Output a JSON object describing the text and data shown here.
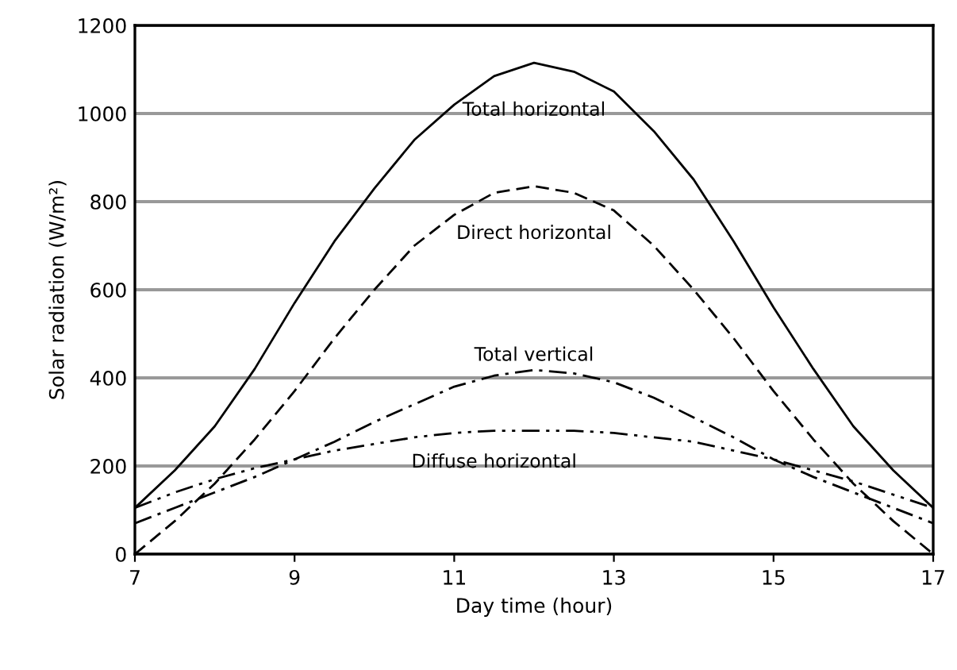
{
  "chart_data": {
    "type": "line",
    "xlabel": "Day time (hour)",
    "ylabel": "Solar radiation (W/m²)",
    "x": [
      7,
      7.5,
      8,
      8.5,
      9,
      9.5,
      10,
      10.5,
      11,
      11.5,
      12,
      12.5,
      13,
      13.5,
      14,
      14.5,
      15,
      15.5,
      16,
      16.5,
      17
    ],
    "series": [
      {
        "name": "Total horizontal",
        "color": "#000000",
        "line_style": "solid",
        "values": [
          105,
          190,
          290,
          420,
          570,
          710,
          830,
          940,
          1020,
          1085,
          1115,
          1095,
          1050,
          960,
          850,
          710,
          560,
          420,
          290,
          190,
          105
        ]
      },
      {
        "name": "Direct horizontal",
        "color": "#000000",
        "line_style": "dashed",
        "values": [
          0,
          75,
          160,
          260,
          370,
          490,
          600,
          700,
          770,
          820,
          835,
          820,
          780,
          700,
          600,
          490,
          370,
          260,
          160,
          75,
          0
        ]
      },
      {
        "name": "Total vertical",
        "color": "#000000",
        "line_style": "dashdot",
        "values": [
          70,
          105,
          140,
          175,
          215,
          255,
          300,
          340,
          380,
          405,
          418,
          410,
          390,
          355,
          310,
          265,
          215,
          175,
          140,
          105,
          70
        ]
      },
      {
        "name": "Diffuse horizontal",
        "color": "#000000",
        "line_style": "dashdotdot",
        "values": [
          105,
          140,
          170,
          195,
          215,
          235,
          250,
          265,
          275,
          280,
          280,
          280,
          275,
          265,
          255,
          235,
          215,
          190,
          165,
          135,
          105
        ]
      }
    ],
    "xlim": [
      7,
      17
    ],
    "xticks": [
      7,
      9,
      11,
      13,
      15,
      17
    ],
    "ylim": [
      0,
      1200
    ],
    "yticks": [
      0,
      200,
      400,
      600,
      800,
      1000,
      1200
    ],
    "grid": "y",
    "marker": "none"
  }
}
